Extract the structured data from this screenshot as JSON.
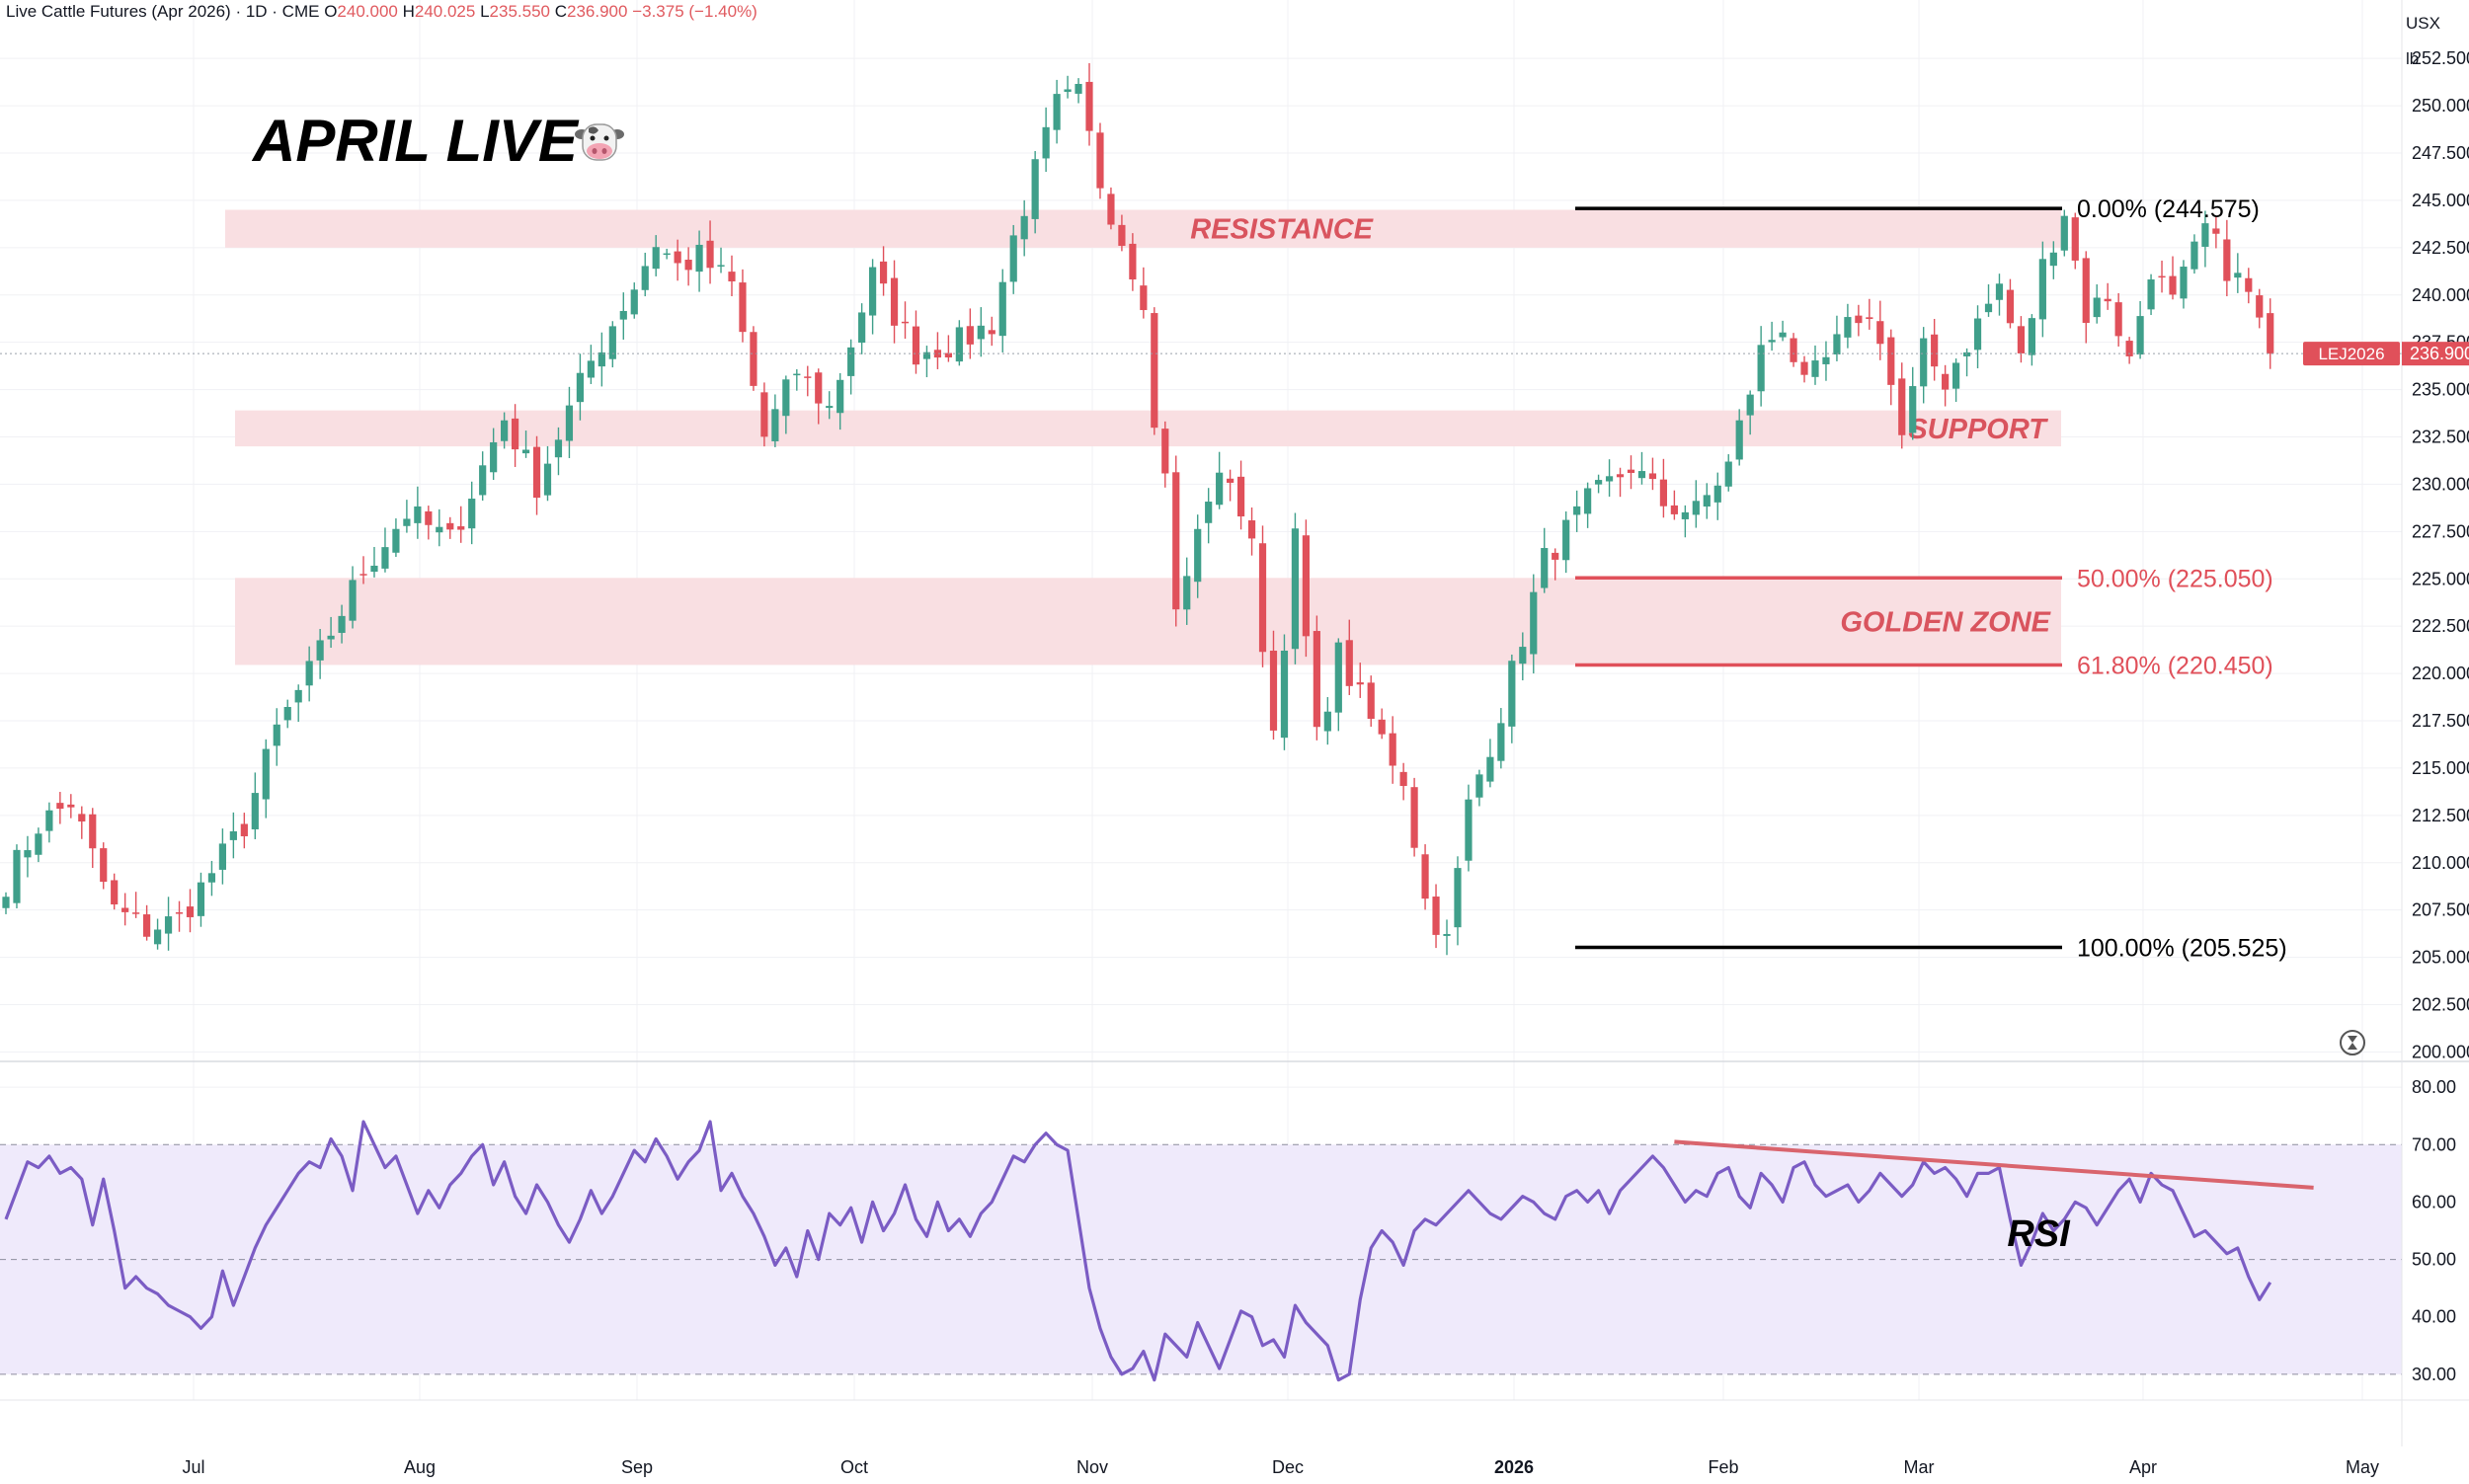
{
  "header": {
    "symbol": "Live Cattle Futures (Apr 2026) · 1D · CME",
    "open_label": "O",
    "open": "240.000",
    "high_label": "H",
    "high": "240.025",
    "low_label": "L",
    "low": "235.550",
    "close_label": "C",
    "close": "236.900",
    "change": "−3.375 (−1.40%)",
    "currency": "USX",
    "unit": "lb"
  },
  "title": "APRIL LIVE",
  "title_icon": "cow-face-icon",
  "colors": {
    "up": "#3f9f8a",
    "down": "#e0505a",
    "zone_fill": "#f9dfe2",
    "zone_text": "#d9545e",
    "fib_black": "#000000",
    "rsi_line": "#7b5cc4",
    "rsi_band": "#efeafb",
    "rsi_trend": "#d9646d"
  },
  "chart_data": [
    {
      "type": "candlestick",
      "x_tick_labels": [
        "Jul",
        "Aug",
        "Sep",
        "Oct",
        "Nov",
        "Dec",
        "2026",
        "Feb",
        "Mar",
        "Apr",
        "May"
      ],
      "ylim": [
        199.5,
        253.5
      ],
      "y_tick_labels": [
        "200.000",
        "202.500",
        "205.000",
        "207.500",
        "210.000",
        "212.500",
        "215.000",
        "217.500",
        "220.000",
        "222.500",
        "225.000",
        "227.500",
        "230.000",
        "232.500",
        "235.000",
        "237.500",
        "240.000",
        "242.500",
        "245.000",
        "247.500",
        "250.000",
        "252.500"
      ],
      "y_ticks": [
        200,
        202.5,
        205,
        207.5,
        210,
        212.5,
        215,
        217.5,
        220,
        222.5,
        225,
        227.5,
        230,
        232.5,
        235,
        237.5,
        240,
        242.5,
        245,
        247.5,
        250,
        252.5
      ],
      "last_price": 236.9,
      "last_price_label": "236.900",
      "symbol_tag": "LEJ2026",
      "zones": [
        {
          "label": "RESISTANCE",
          "low": 242.5,
          "high": 244.5
        },
        {
          "label": "SUPPORT",
          "low": 232.0,
          "high": 233.9
        },
        {
          "label": "GOLDEN ZONE",
          "low": 220.45,
          "high": 225.05
        }
      ],
      "fib_levels": [
        {
          "label": "0.00% (244.575)",
          "price": 244.575
        },
        {
          "label": "50.00% (225.050)",
          "price": 225.05
        },
        {
          "label": "61.80% (220.450)",
          "price": 220.45
        },
        {
          "label": "100.00% (205.525)",
          "price": 205.525
        }
      ],
      "anchors": [
        [
          0,
          209.0
        ],
        [
          3,
          212.0
        ],
        [
          6,
          213.2
        ],
        [
          10,
          207.5
        ],
        [
          13,
          206.5
        ],
        [
          16,
          207.0
        ],
        [
          22,
          212.0
        ],
        [
          25,
          217.0
        ],
        [
          28,
          220.0
        ],
        [
          33,
          225.5
        ],
        [
          37,
          228.5
        ],
        [
          41,
          227.0
        ],
        [
          46,
          233.5
        ],
        [
          49,
          230.0
        ],
        [
          54,
          236.5
        ],
        [
          58,
          240.5
        ],
        [
          60,
          242.8
        ],
        [
          62,
          241.5
        ],
        [
          64,
          242.0
        ],
        [
          67,
          240.5
        ],
        [
          70,
          232.5
        ],
        [
          73,
          236.0
        ],
        [
          76,
          234.0
        ],
        [
          80,
          241.0
        ],
        [
          84,
          237.0
        ],
        [
          88,
          237.5
        ],
        [
          91,
          238.5
        ],
        [
          93,
          243.0
        ],
        [
          97,
          250.0
        ],
        [
          99,
          250.5
        ],
        [
          101,
          246.0
        ],
        [
          103,
          243.0
        ],
        [
          105,
          240.0
        ],
        [
          106,
          232.8
        ],
        [
          107,
          231.0
        ],
        [
          108,
          223.0
        ],
        [
          111,
          229.5
        ],
        [
          113,
          230.5
        ],
        [
          115,
          226.5
        ],
        [
          117,
          217.0
        ],
        [
          119,
          227.0
        ],
        [
          121,
          216.5
        ],
        [
          123,
          221.0
        ],
        [
          126,
          217.5
        ],
        [
          129,
          214.5
        ],
        [
          131,
          208.0
        ],
        [
          133,
          205.8
        ],
        [
          135,
          213.0
        ],
        [
          138,
          218.0
        ],
        [
          142,
          226.0
        ],
        [
          146,
          229.0
        ],
        [
          150,
          231.0
        ],
        [
          153,
          229.0
        ],
        [
          156,
          228.5
        ],
        [
          159,
          231.0
        ],
        [
          162,
          237.0
        ],
        [
          164,
          238.5
        ],
        [
          166,
          235.0
        ],
        [
          168,
          236.5
        ],
        [
          171,
          239.0
        ],
        [
          173,
          238.0
        ],
        [
          175,
          232.5
        ],
        [
          177,
          237.0
        ],
        [
          179,
          235.5
        ],
        [
          182,
          238.5
        ],
        [
          184,
          240.5
        ],
        [
          186,
          236.5
        ],
        [
          188,
          241.5
        ],
        [
          190,
          244.5
        ],
        [
          192,
          239.0
        ],
        [
          194,
          240.0
        ],
        [
          196,
          236.5
        ],
        [
          198,
          241.5
        ],
        [
          200,
          239.5
        ],
        [
          203,
          243.5
        ],
        [
          205,
          241.5
        ],
        [
          207,
          240.0
        ],
        [
          209,
          236.9
        ]
      ],
      "rsi": {
        "label": "RSI",
        "ylim": [
          25.5,
          84.5
        ],
        "band": [
          30,
          70
        ],
        "y_tick_labels": [
          "30.00",
          "40.00",
          "50.00",
          "60.00",
          "70.00",
          "80.00"
        ],
        "y_ticks": [
          30,
          40,
          50,
          60,
          70,
          80
        ],
        "values": [
          57,
          62,
          67,
          66,
          68,
          65,
          66,
          64,
          56,
          64,
          55,
          45,
          47,
          45,
          44,
          42,
          41,
          40,
          38,
          40,
          48,
          42,
          47,
          52,
          56,
          59,
          62,
          65,
          67,
          66,
          71,
          68,
          62,
          74,
          70,
          66,
          68,
          63,
          58,
          62,
          59,
          63,
          65,
          68,
          70,
          63,
          67,
          61,
          58,
          63,
          60,
          56,
          53,
          57,
          62,
          58,
          61,
          65,
          69,
          67,
          71,
          68,
          64,
          67,
          69,
          74,
          62,
          65,
          61,
          58,
          54,
          49,
          52,
          47,
          55,
          50,
          58,
          56,
          59,
          53,
          60,
          55,
          58,
          63,
          57,
          54,
          60,
          55,
          57,
          54,
          58,
          60,
          64,
          68,
          67,
          70,
          72,
          70,
          69,
          57,
          45,
          38,
          33,
          30,
          31,
          34,
          29,
          37,
          35,
          33,
          39,
          35,
          31,
          36,
          41,
          40,
          35,
          36,
          33,
          42,
          39,
          37,
          35,
          29,
          30,
          43,
          52,
          55,
          53,
          49,
          55,
          57,
          56,
          58,
          60,
          62,
          60,
          58,
          57,
          59,
          61,
          60,
          58,
          57,
          61,
          62,
          60,
          62,
          58,
          62,
          64,
          66,
          68,
          66,
          63,
          60,
          62,
          61,
          65,
          66,
          61,
          59,
          65,
          63,
          60,
          66,
          67,
          63,
          61,
          62,
          63,
          60,
          62,
          65,
          63,
          61,
          63,
          67,
          65,
          66,
          64,
          61,
          65,
          65,
          66,
          57,
          49,
          53,
          58,
          55,
          57,
          60,
          59,
          56,
          59,
          62,
          64,
          60,
          65,
          63,
          62,
          58,
          54,
          55,
          53,
          51,
          52,
          47,
          43,
          46
        ],
        "trendline": {
          "from": {
            "bar": 154,
            "value": 70.5
          },
          "to": {
            "bar": 213,
            "value": 62.5
          }
        }
      }
    }
  ]
}
